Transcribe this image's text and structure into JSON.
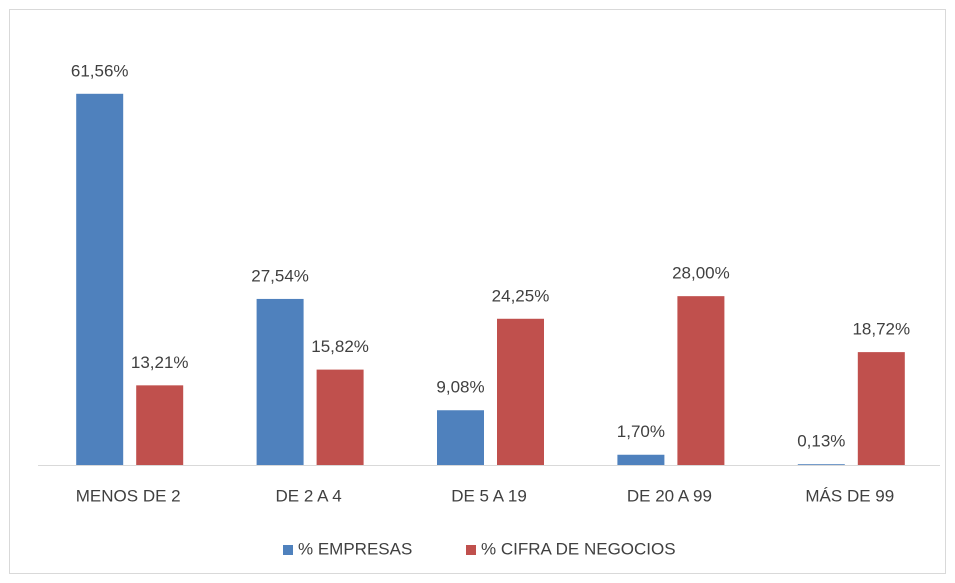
{
  "chart_data": {
    "type": "bar",
    "categories": [
      "MENOS DE 2",
      "DE 2 A 4",
      "DE 5 A 19",
      "DE 20 A 99",
      "MÁS DE 99"
    ],
    "series": [
      {
        "name": "% EMPRESAS",
        "color": "#4f81bd",
        "values": [
          61.56,
          27.54,
          9.08,
          1.7,
          0.13
        ],
        "value_labels": [
          "61,56%",
          "27,54%",
          "9,08%",
          "1,70%",
          "0,13%"
        ]
      },
      {
        "name": "% CIFRA DE NEGOCIOS",
        "color": "#c0504d",
        "values": [
          13.21,
          15.82,
          24.25,
          28.0,
          18.72
        ],
        "value_labels": [
          "13,21%",
          "15,82%",
          "24,25%",
          "28,00%",
          "18,72%"
        ]
      }
    ],
    "legend": "bottom"
  }
}
